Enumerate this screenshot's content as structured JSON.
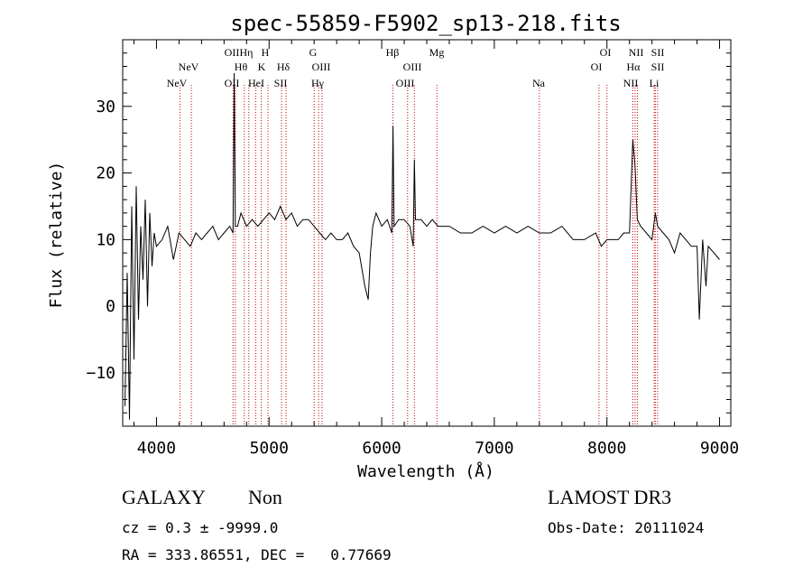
{
  "chart_data": {
    "type": "line",
    "title": "spec-55859-F5902_sp13-218.fits",
    "xlabel": "Wavelength (Å)",
    "ylabel": "Flux (relative)",
    "xlim": [
      3700,
      9100
    ],
    "ylim": [
      -18,
      40
    ],
    "xticks": [
      4000,
      5000,
      6000,
      7000,
      8000,
      9000
    ],
    "yticks": [
      -10,
      0,
      10,
      20,
      30
    ],
    "series": [
      {
        "name": "spectrum",
        "x": [
          3720,
          3740,
          3760,
          3780,
          3800,
          3820,
          3840,
          3860,
          3880,
          3900,
          3920,
          3940,
          3960,
          3980,
          4000,
          4050,
          4100,
          4150,
          4200,
          4250,
          4300,
          4350,
          4400,
          4450,
          4500,
          4550,
          4600,
          4650,
          4680,
          4690,
          4700,
          4720,
          4750,
          4800,
          4850,
          4900,
          4950,
          5000,
          5050,
          5100,
          5150,
          5200,
          5250,
          5300,
          5350,
          5400,
          5450,
          5500,
          5550,
          5600,
          5650,
          5700,
          5750,
          5800,
          5850,
          5880,
          5900,
          5920,
          5950,
          6000,
          6050,
          6090,
          6100,
          6110,
          6150,
          6200,
          6250,
          6280,
          6290,
          6300,
          6350,
          6400,
          6450,
          6500,
          6600,
          6700,
          6800,
          6900,
          7000,
          7100,
          7200,
          7300,
          7400,
          7500,
          7600,
          7700,
          7800,
          7900,
          7950,
          8000,
          8050,
          8100,
          8150,
          8200,
          8230,
          8250,
          8270,
          8300,
          8350,
          8400,
          8430,
          8450,
          8500,
          8550,
          8600,
          8650,
          8700,
          8750,
          8800,
          8820,
          8850,
          8880,
          8900,
          8950,
          9000
        ],
        "y": [
          -15,
          5,
          -17,
          15,
          -8,
          18,
          -2,
          12,
          4,
          16,
          0,
          14,
          6,
          11,
          9,
          10,
          12,
          7,
          11,
          10,
          9,
          11,
          10,
          11,
          12,
          10,
          11,
          12,
          11,
          35,
          12,
          12,
          14,
          12,
          13,
          12,
          13,
          14,
          13,
          15,
          13,
          14,
          12,
          13,
          13,
          12,
          11,
          10,
          11,
          10,
          10,
          11,
          9,
          8,
          3,
          1,
          8,
          12,
          14,
          12,
          13,
          11,
          27,
          12,
          13,
          13,
          12,
          9,
          22,
          13,
          13,
          12,
          13,
          12,
          12,
          11,
          11,
          12,
          11,
          12,
          11,
          12,
          11,
          11,
          12,
          10,
          10,
          11,
          9,
          10,
          10,
          10,
          11,
          11,
          25,
          21,
          13,
          12,
          11,
          10,
          14,
          12,
          11,
          10,
          8,
          11,
          10,
          9,
          9,
          -2,
          10,
          3,
          9,
          8,
          7
        ]
      }
    ],
    "lines": [
      {
        "name": "NeV",
        "wavelength": 4210
      },
      {
        "name": "NeV",
        "wavelength": 4310
      },
      {
        "name": "OII",
        "wavelength": 4680
      },
      {
        "name": "OII",
        "wavelength": 4700
      },
      {
        "name": "Hθ",
        "wavelength": 4780
      },
      {
        "name": "Hη",
        "wavelength": 4820
      },
      {
        "name": "HeI",
        "wavelength": 4880
      },
      {
        "name": "K",
        "wavelength": 4930
      },
      {
        "name": "H",
        "wavelength": 4990
      },
      {
        "name": "SII",
        "wavelength": 5110
      },
      {
        "name": "Hδ",
        "wavelength": 5150
      },
      {
        "name": "G",
        "wavelength": 5400
      },
      {
        "name": "Hγ",
        "wavelength": 5440
      },
      {
        "name": "OIII",
        "wavelength": 5470
      },
      {
        "name": "Hβ",
        "wavelength": 6100
      },
      {
        "name": "OIII",
        "wavelength": 6230
      },
      {
        "name": "OIII",
        "wavelength": 6290
      },
      {
        "name": "Mg",
        "wavelength": 6490
      },
      {
        "name": "Na",
        "wavelength": 7400
      },
      {
        "name": "OI",
        "wavelength": 7930
      },
      {
        "name": "OI",
        "wavelength": 8000
      },
      {
        "name": "NII",
        "wavelength": 8230
      },
      {
        "name": "Hα",
        "wavelength": 8250
      },
      {
        "name": "NII",
        "wavelength": 8270
      },
      {
        "name": "SII",
        "wavelength": 8420
      },
      {
        "name": "Li",
        "wavelength": 8430
      },
      {
        "name": "SII",
        "wavelength": 8450
      }
    ]
  },
  "info": {
    "object_class": "GALAXY",
    "subclass": "Non",
    "survey": "LAMOST DR3",
    "cz": "cz = 0.3 ± -9999.0",
    "obs_date": "Obs-Date: 20111024",
    "coords": "RA = 333.86551, DEC =   0.77669"
  },
  "line_labels": [
    {
      "text": "NeV",
      "row": 1
    },
    {
      "text": "NeV",
      "row": 2
    },
    {
      "text": "OII",
      "row": 0
    },
    {
      "text": "Hη",
      "row": 0
    },
    {
      "text": "H",
      "row": 0
    },
    {
      "text": "Hθ",
      "row": 1
    },
    {
      "text": "K",
      "row": 1
    },
    {
      "text": "Hδ",
      "row": 1
    },
    {
      "text": "OII",
      "row": 2
    },
    {
      "text": "HeI",
      "row": 2
    },
    {
      "text": "SII",
      "row": 2
    },
    {
      "text": "G",
      "row": 0
    },
    {
      "text": "OIII",
      "row": 1
    },
    {
      "text": "Hγ",
      "row": 2
    },
    {
      "text": "Hβ",
      "row": 0
    },
    {
      "text": "OIII",
      "row": 1
    },
    {
      "text": "OIII",
      "row": 2
    },
    {
      "text": "Mg",
      "row": 0
    },
    {
      "text": "Na",
      "row": 2
    },
    {
      "text": "OI",
      "row": 0
    },
    {
      "text": "OI",
      "row": 1
    },
    {
      "text": "NII",
      "row": 0
    },
    {
      "text": "SII",
      "row": 0
    },
    {
      "text": "Hα",
      "row": 1
    },
    {
      "text": "SII",
      "row": 1
    },
    {
      "text": "NII",
      "row": 2
    },
    {
      "text": "Li",
      "row": 2
    }
  ],
  "colors": {
    "spectrum": "#000000",
    "line_marker": "#cc0000",
    "axes": "#000000"
  }
}
